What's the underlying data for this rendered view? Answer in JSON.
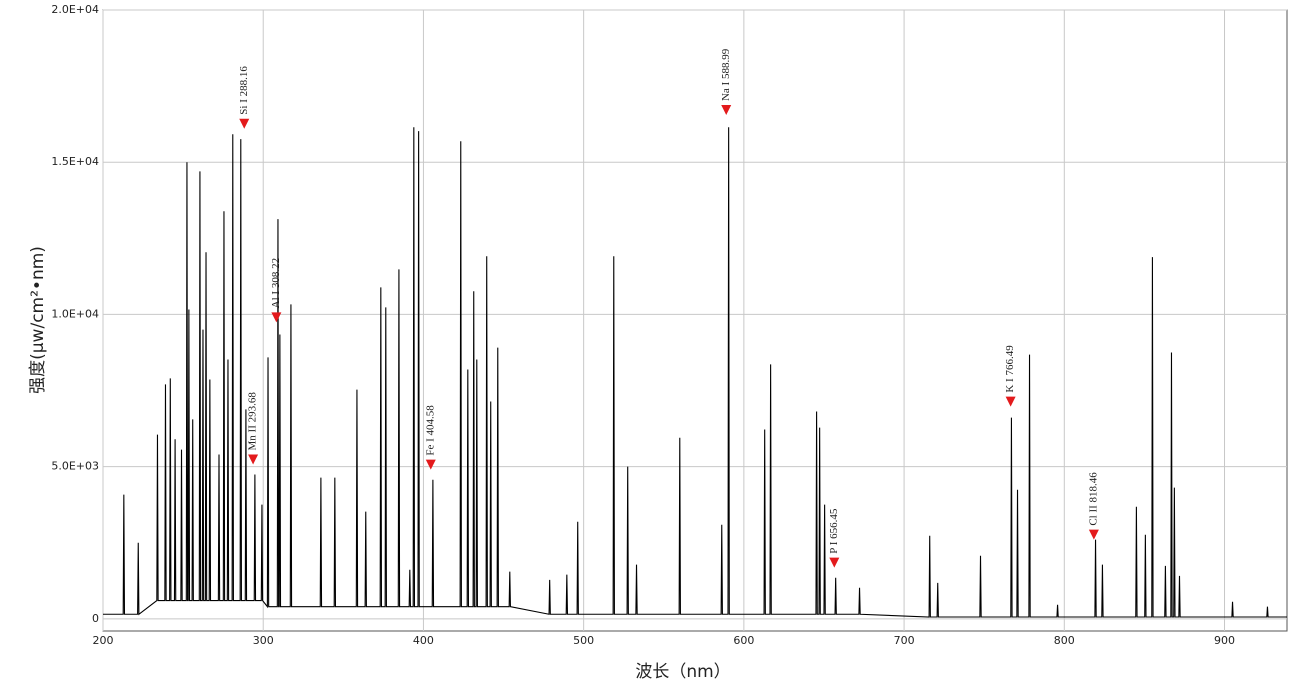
{
  "chart_data": {
    "type": "line",
    "x_label": "波长（nm）",
    "y_label": "强度(μw/cm²•nm)",
    "color": "#000000",
    "grid": true,
    "xlim": [
      200,
      939
    ],
    "ylim": [
      -400,
      20000
    ],
    "xticks": [
      200,
      300,
      400,
      500,
      600,
      700,
      800,
      900
    ],
    "yticks": [
      0,
      {
        "value": 5000,
        "label": "5.0E+03"
      },
      {
        "value": 10000,
        "label": "1.0E+04"
      },
      {
        "value": 15000,
        "label": "1.5E+04"
      },
      {
        "value": 20000,
        "label": "2.0E+04"
      }
    ],
    "x": [
      200,
      212.6,
      213,
      213.4,
      221.6,
      222,
      222.4,
      233.6,
      234,
      234.4,
      238.6,
      239,
      239.4,
      241.6,
      242,
      242.4,
      244.6,
      245,
      245.4,
      248.6,
      249,
      249.4,
      252,
      252.4,
      252.8,
      253.2,
      253.6,
      254,
      255.6,
      256,
      256.4,
      260.1,
      260.5,
      260.9,
      262,
      262.4,
      262.8,
      263.9,
      264.3,
      264.7,
      266.3,
      266.7,
      267.1,
      272,
      272.4,
      272.8,
      275.1,
      275.5,
      275.9,
      277.6,
      278,
      278.4,
      280.6,
      281,
      281.4,
      285.6,
      286,
      286.4,
      288.8,
      289.2,
      289.6,
      294.4,
      294.8,
      295.2,
      298.8,
      299.2,
      299.6,
      302.6,
      303,
      303.4,
      308.8,
      309.2,
      309.6,
      310,
      310.4,
      310.8,
      316.9,
      317.3,
      317.7,
      335.6,
      336,
      336.4,
      344.3,
      344.7,
      345.1,
      358.1,
      358.5,
      358.9,
      363.6,
      364,
      364.4,
      373,
      373.4,
      373.8,
      376.1,
      376.5,
      376.9,
      384.3,
      384.7,
      385.1,
      391.1,
      391.5,
      391.9,
      393.6,
      394,
      394.4,
      396.6,
      397,
      397.4,
      405.5,
      405.9,
      406.3,
      422.9,
      423.3,
      423.7,
      427.3,
      427.7,
      428.1,
      431,
      431.4,
      431.8,
      432.9,
      433.3,
      433.7,
      439.1,
      439.5,
      439.9,
      441.6,
      442,
      442.4,
      446,
      446.4,
      446.8,
      453.5,
      453.9,
      454.3,
      478.4,
      478.8,
      479.2,
      489.1,
      489.5,
      489.9,
      495.9,
      496.3,
      496.7,
      518.4,
      518.8,
      519.2,
      527.1,
      527.5,
      527.9,
      532.6,
      533,
      533.4,
      559.6,
      560,
      560.4,
      585.8,
      586.2,
      586.6,
      590.1,
      590.5,
      590.9,
      612.6,
      613,
      613.4,
      616.3,
      616.7,
      617.1,
      645,
      645.4,
      645.8,
      646.9,
      647.3,
      647.7,
      650,
      650.4,
      650.8,
      656.9,
      657.3,
      657.7,
      671.8,
      672.2,
      672.6,
      715.6,
      716,
      716.4,
      720.6,
      721,
      721.4,
      747.3,
      747.7,
      748.1,
      766.6,
      767,
      767.4,
      770.4,
      770.8,
      771.2,
      777.9,
      778.3,
      778.7,
      795.4,
      795.8,
      796.2,
      819.1,
      819.5,
      819.9,
      823.4,
      823.8,
      824.2,
      844.6,
      845,
      845.4,
      850.2,
      850.6,
      851,
      854.6,
      855,
      855.4,
      862.7,
      863.1,
      863.5,
      866.5,
      866.9,
      867.3,
      868.3,
      868.7,
      869.1,
      871.5,
      871.9,
      872.3,
      904.6,
      905,
      905.4,
      926.4,
      926.8,
      927.2,
      939
    ],
    "values": [
      150,
      150,
      4080,
      150,
      150,
      2500,
      150,
      600,
      6050,
      600,
      600,
      7700,
      600,
      600,
      7900,
      600,
      600,
      5900,
      600,
      600,
      5560,
      600,
      600,
      15000,
      600,
      600,
      10160,
      600,
      600,
      6550,
      600,
      600,
      14700,
      600,
      600,
      9500,
      600,
      600,
      12040,
      600,
      600,
      7860,
      600,
      600,
      5400,
      600,
      600,
      13390,
      600,
      600,
      8520,
      600,
      600,
      15920,
      600,
      600,
      15760,
      600,
      600,
      6880,
      600,
      600,
      4740,
      600,
      600,
      3750,
      600,
      400,
      8590,
      400,
      400,
      13130,
      400,
      400,
      9340,
      400,
      400,
      10330,
      400,
      400,
      4640,
      400,
      400,
      4640,
      400,
      400,
      7530,
      400,
      400,
      3520,
      400,
      400,
      10890,
      400,
      400,
      10230,
      400,
      400,
      11480,
      400,
      400,
      1610,
      400,
      400,
      16150,
      400,
      400,
      16020,
      400,
      400,
      4570,
      400,
      400,
      15690,
      400,
      400,
      8190,
      400,
      400,
      10760,
      400,
      400,
      8520,
      400,
      400,
      11910,
      400,
      400,
      7140,
      400,
      400,
      8910,
      400,
      400,
      1550,
      400,
      150,
      1280,
      150,
      150,
      1450,
      150,
      150,
      3190,
      150,
      150,
      11910,
      150,
      150,
      5000,
      150,
      150,
      1780,
      150,
      150,
      5950,
      150,
      150,
      3090,
      150,
      150,
      16150,
      150,
      150,
      6220,
      150,
      150,
      8360,
      150,
      150,
      6810,
      150,
      150,
      6280,
      150,
      150,
      3750,
      150,
      150,
      1350,
      150,
      150,
      1020,
      150,
      60,
      2730,
      60,
      60,
      1180,
      60,
      60,
      2070,
      60,
      60,
      6610,
      60,
      60,
      4240,
      60,
      60,
      8680,
      60,
      60,
      460,
      60,
      60,
      2600,
      60,
      60,
      1780,
      60,
      60,
      3680,
      60,
      60,
      2760,
      60,
      60,
      11880,
      60,
      60,
      1740,
      60,
      60,
      8750,
      60,
      60,
      4310,
      60,
      60,
      1410,
      60,
      60,
      560,
      60,
      60,
      400,
      60,
      60
    ],
    "marker_color": "#e31a1c",
    "annotations": [
      {
        "label": "Si I 288.16",
        "x": 288.16,
        "y": 16100,
        "color": "#1c1c5e"
      },
      {
        "label": "Mn II 293.68",
        "x": 293.68,
        "y": 5070,
        "color": "#22308a"
      },
      {
        "label": "Al I 308.22",
        "x": 308.22,
        "y": 9740,
        "color": "#7a2fc0"
      },
      {
        "label": "Fe I 404.58",
        "x": 404.58,
        "y": 4900,
        "color": "#8b1a1a"
      },
      {
        "label": "Na I 588.99",
        "x": 588.99,
        "y": 16550,
        "color": "#2e6b1e"
      },
      {
        "label": "P I 656.45",
        "x": 656.45,
        "y": 1680,
        "color": "#3b78b0"
      },
      {
        "label": "K I 766.49",
        "x": 766.49,
        "y": 6970,
        "color": "#d2691e"
      },
      {
        "label": "Cl II 818.46",
        "x": 818.46,
        "y": 2600,
        "color": "#c0307a"
      }
    ]
  }
}
